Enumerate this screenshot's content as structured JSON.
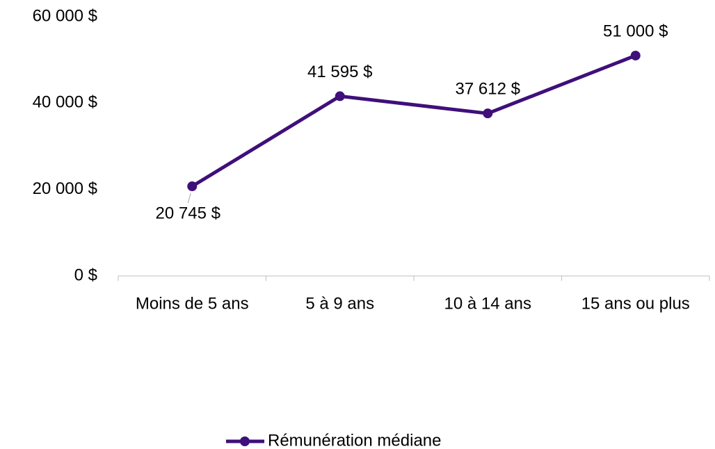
{
  "chart_data": {
    "type": "line",
    "categories": [
      "Moins de 5 ans",
      "5 à 9 ans",
      "10 à 14 ans",
      "15 ans ou plus"
    ],
    "series": [
      {
        "name": "Rémunération médiane",
        "color": "#3f0f7a",
        "values": [
          20745,
          41595,
          37612,
          51000
        ],
        "value_labels": [
          "20 745 $",
          "41 595 $",
          "37 612 $",
          "51 000 $"
        ]
      }
    ],
    "ylim": [
      0,
      60000
    ],
    "yticks": [
      {
        "value": 0,
        "label": "0 $"
      },
      {
        "value": 20000,
        "label": "20 000 $"
      },
      {
        "value": 40000,
        "label": "40 000 $"
      },
      {
        "value": 60000,
        "label": "60 000 $"
      }
    ],
    "legend": "bottom"
  }
}
